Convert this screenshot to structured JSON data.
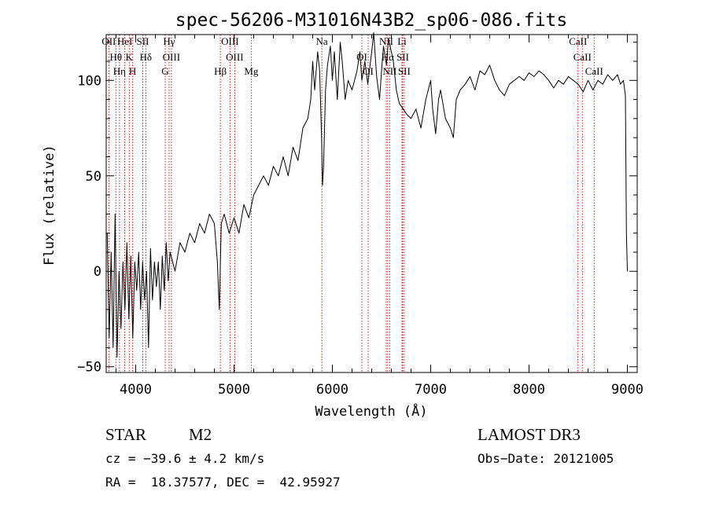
{
  "chart_data": {
    "type": "line",
    "title": "spec-56206-M31016N43B2_sp06-086.fits",
    "xlabel": "Wavelength (Å)",
    "ylabel": "Flux (relative)",
    "xlim": [
      3700,
      9100
    ],
    "ylim": [
      -53,
      124
    ],
    "xticks": [
      4000,
      5000,
      6000,
      7000,
      8000,
      9000
    ],
    "yticks": [
      -50,
      0,
      50,
      100
    ],
    "x_minor_step": 200,
    "y_minor_step": 10,
    "line_color": "#000000",
    "marker_color": "#cc0000",
    "series": [
      {
        "points": [
          [
            3710,
            20
          ],
          [
            3730,
            -35
          ],
          [
            3750,
            10
          ],
          [
            3770,
            -40
          ],
          [
            3790,
            30
          ],
          [
            3810,
            -45
          ],
          [
            3830,
            0
          ],
          [
            3850,
            -30
          ],
          [
            3870,
            5
          ],
          [
            3890,
            -20
          ],
          [
            3910,
            15
          ],
          [
            3930,
            -25
          ],
          [
            3950,
            8
          ],
          [
            3970,
            -35
          ],
          [
            3990,
            5
          ],
          [
            4010,
            -10
          ],
          [
            4030,
            10
          ],
          [
            4050,
            -20
          ],
          [
            4070,
            5
          ],
          [
            4090,
            -15
          ],
          [
            4110,
            0
          ],
          [
            4130,
            -40
          ],
          [
            4150,
            12
          ],
          [
            4170,
            -15
          ],
          [
            4190,
            5
          ],
          [
            4210,
            -8
          ],
          [
            4230,
            5
          ],
          [
            4250,
            -20
          ],
          [
            4270,
            8
          ],
          [
            4290,
            -10
          ],
          [
            4310,
            15
          ],
          [
            4330,
            -5
          ],
          [
            4350,
            10
          ],
          [
            4400,
            0
          ],
          [
            4450,
            15
          ],
          [
            4500,
            10
          ],
          [
            4550,
            20
          ],
          [
            4600,
            15
          ],
          [
            4650,
            25
          ],
          [
            4700,
            20
          ],
          [
            4750,
            30
          ],
          [
            4800,
            25
          ],
          [
            4830,
            5
          ],
          [
            4850,
            -20
          ],
          [
            4870,
            25
          ],
          [
            4900,
            30
          ],
          [
            4950,
            20
          ],
          [
            5000,
            28
          ],
          [
            5050,
            20
          ],
          [
            5100,
            35
          ],
          [
            5150,
            28
          ],
          [
            5200,
            40
          ],
          [
            5250,
            45
          ],
          [
            5300,
            50
          ],
          [
            5350,
            45
          ],
          [
            5400,
            55
          ],
          [
            5450,
            50
          ],
          [
            5500,
            60
          ],
          [
            5550,
            50
          ],
          [
            5600,
            65
          ],
          [
            5650,
            58
          ],
          [
            5700,
            75
          ],
          [
            5750,
            80
          ],
          [
            5780,
            90
          ],
          [
            5800,
            110
          ],
          [
            5820,
            95
          ],
          [
            5850,
            115
          ],
          [
            5870,
            105
          ],
          [
            5890,
            70
          ],
          [
            5900,
            45
          ],
          [
            5910,
            55
          ],
          [
            5930,
            95
          ],
          [
            5950,
            108
          ],
          [
            5980,
            118
          ],
          [
            6000,
            100
          ],
          [
            6020,
            115
          ],
          [
            6050,
            90
          ],
          [
            6080,
            120
          ],
          [
            6100,
            110
          ],
          [
            6130,
            90
          ],
          [
            6160,
            100
          ],
          [
            6200,
            95
          ],
          [
            6250,
            105
          ],
          [
            6280,
            115
          ],
          [
            6300,
            100
          ],
          [
            6330,
            110
          ],
          [
            6360,
            98
          ],
          [
            6400,
            115
          ],
          [
            6420,
            125
          ],
          [
            6450,
            102
          ],
          [
            6480,
            90
          ],
          [
            6500,
            105
          ],
          [
            6520,
            118
          ],
          [
            6550,
            108
          ],
          [
            6570,
            122
          ],
          [
            6600,
            115
          ],
          [
            6620,
            110
          ],
          [
            6650,
            95
          ],
          [
            6680,
            88
          ],
          [
            6720,
            85
          ],
          [
            6760,
            82
          ],
          [
            6800,
            80
          ],
          [
            6850,
            85
          ],
          [
            6900,
            75
          ],
          [
            6950,
            90
          ],
          [
            7000,
            100
          ],
          [
            7020,
            85
          ],
          [
            7050,
            72
          ],
          [
            7080,
            90
          ],
          [
            7100,
            95
          ],
          [
            7150,
            80
          ],
          [
            7200,
            75
          ],
          [
            7230,
            70
          ],
          [
            7260,
            90
          ],
          [
            7300,
            95
          ],
          [
            7350,
            98
          ],
          [
            7400,
            102
          ],
          [
            7450,
            95
          ],
          [
            7500,
            105
          ],
          [
            7550,
            103
          ],
          [
            7600,
            108
          ],
          [
            7650,
            100
          ],
          [
            7700,
            95
          ],
          [
            7750,
            92
          ],
          [
            7800,
            98
          ],
          [
            7850,
            100
          ],
          [
            7900,
            102
          ],
          [
            7950,
            100
          ],
          [
            8000,
            104
          ],
          [
            8050,
            102
          ],
          [
            8100,
            105
          ],
          [
            8150,
            103
          ],
          [
            8200,
            100
          ],
          [
            8250,
            96
          ],
          [
            8300,
            100
          ],
          [
            8350,
            98
          ],
          [
            8400,
            102
          ],
          [
            8450,
            100
          ],
          [
            8500,
            98
          ],
          [
            8550,
            94
          ],
          [
            8600,
            100
          ],
          [
            8650,
            95
          ],
          [
            8700,
            100
          ],
          [
            8750,
            98
          ],
          [
            8800,
            103
          ],
          [
            8850,
            100
          ],
          [
            8900,
            103
          ],
          [
            8930,
            98
          ],
          [
            8960,
            100
          ],
          [
            8980,
            92
          ],
          [
            8990,
            20
          ],
          [
            9000,
            0
          ]
        ]
      }
    ],
    "lines": [
      {
        "wavelength": 3727,
        "names": [
          "OII"
        ]
      },
      {
        "wavelength": 3798,
        "names": [
          "Hθ"
        ]
      },
      {
        "wavelength": 3835,
        "names": [
          "Hη"
        ]
      },
      {
        "wavelength": 3889,
        "names": [
          "HeI"
        ]
      },
      {
        "wavelength": 3934,
        "names": [
          "K"
        ]
      },
      {
        "wavelength": 3969,
        "names": [
          "H"
        ]
      },
      {
        "wavelength": 4072,
        "names": [
          "SII"
        ]
      },
      {
        "wavelength": 4102,
        "names": [
          "Hδ"
        ]
      },
      {
        "wavelength": 4300,
        "names": [
          "G"
        ]
      },
      {
        "wavelength": 4340,
        "names": [
          "Hγ"
        ]
      },
      {
        "wavelength": 4363,
        "names": [
          "OIII"
        ]
      },
      {
        "wavelength": 4861,
        "names": [
          "Hβ"
        ]
      },
      {
        "wavelength": 4959,
        "names": [
          "OIII"
        ]
      },
      {
        "wavelength": 5007,
        "names": [
          "OIII"
        ]
      },
      {
        "wavelength": 5175,
        "names": [
          "Mg"
        ]
      },
      {
        "wavelength": 5893,
        "names": [
          "Na"
        ]
      },
      {
        "wavelength": 6300,
        "names": [
          "OI"
        ]
      },
      {
        "wavelength": 6364,
        "names": [
          "OI"
        ]
      },
      {
        "wavelength": 6548,
        "names": [
          "NII"
        ]
      },
      {
        "wavelength": 6563,
        "names": [
          "Hα"
        ]
      },
      {
        "wavelength": 6583,
        "names": [
          "NII"
        ]
      },
      {
        "wavelength": 6708,
        "names": [
          "Li"
        ]
      },
      {
        "wavelength": 6716,
        "names": [
          "SII"
        ]
      },
      {
        "wavelength": 6731,
        "names": [
          "SII"
        ]
      },
      {
        "wavelength": 8498,
        "names": [
          "CaII"
        ]
      },
      {
        "wavelength": 8542,
        "names": [
          "CaII"
        ]
      },
      {
        "wavelength": 8662,
        "names": [
          "CaII"
        ]
      }
    ],
    "labels": {
      "Hθ": "Hθ",
      "Hη": "Hη",
      "Hδ": "Hδ",
      "Hγ": "Hγ",
      "Hβ": "Hβ",
      "Hα": "Hα",
      "OII": "OII",
      "HeI": "HeI",
      "K": "K",
      "H": "H",
      "SII": "SII",
      "G": "G",
      "OIII": "OIII",
      "Mg": "Mg",
      "Na": "Na",
      "OI": "OI",
      "NII": "NII",
      "Li": "Li",
      "CaII": "CaII"
    }
  },
  "info": {
    "class": "STAR",
    "subclass": "M2",
    "survey": "LAMOST DR3",
    "cz": "cz = −39.6 ± 4.2 km/s",
    "obs_date": "Obs−Date: 20121005",
    "coords": "RA =  18.37577, DEC =  42.95927"
  }
}
